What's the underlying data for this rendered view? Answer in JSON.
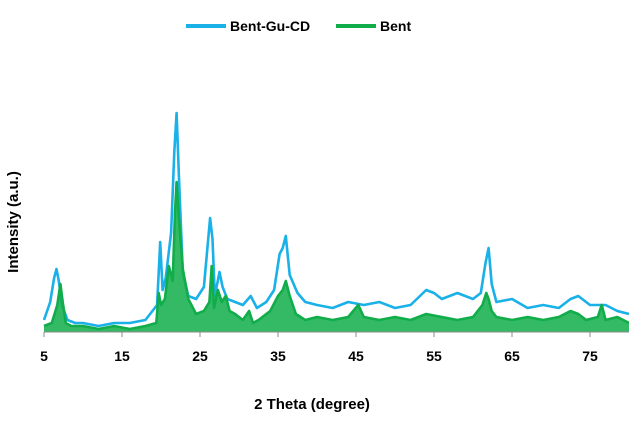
{
  "chart_data": {
    "type": "line",
    "title": "",
    "xlabel": "2 Theta (degree)",
    "ylabel": "Intensity (a.u.)",
    "xlim": [
      5,
      80
    ],
    "x_ticks": [
      5,
      15,
      25,
      35,
      45,
      55,
      65,
      75
    ],
    "x_tick_labels": [
      "5",
      "15",
      "25",
      "35",
      "45",
      "55",
      "65",
      "75"
    ],
    "y_ticks_shown": false,
    "grid": false,
    "legend": "top-center",
    "series": [
      {
        "name": "Bent-Gu-CD",
        "color": "#1ab0e8",
        "x": [
          5,
          5.8,
          6.3,
          6.6,
          6.9,
          7.3,
          8,
          9,
          10,
          12,
          14,
          16,
          18,
          19.5,
          19.9,
          20.2,
          20.6,
          21.3,
          21.7,
          22.0,
          22.3,
          22.8,
          23.5,
          24.5,
          25.5,
          26.3,
          26.6,
          26.9,
          27.5,
          27.9,
          28.5,
          29.5,
          30.5,
          31.5,
          32.3,
          33.5,
          34.5,
          35.2,
          35.6,
          36.0,
          36.5,
          37.5,
          38.5,
          40,
          42,
          44,
          46,
          48,
          50,
          52,
          54,
          55,
          56,
          58,
          60,
          61,
          61.6,
          62.0,
          62.4,
          63,
          65,
          67,
          69,
          71,
          72.5,
          73.5,
          75,
          77,
          78.5,
          80
        ],
        "y": [
          0.04,
          0.1,
          0.18,
          0.21,
          0.17,
          0.09,
          0.04,
          0.03,
          0.03,
          0.02,
          0.03,
          0.03,
          0.04,
          0.09,
          0.3,
          0.14,
          0.18,
          0.33,
          0.6,
          0.73,
          0.52,
          0.2,
          0.12,
          0.11,
          0.15,
          0.38,
          0.31,
          0.12,
          0.2,
          0.15,
          0.11,
          0.1,
          0.09,
          0.12,
          0.08,
          0.1,
          0.14,
          0.26,
          0.28,
          0.32,
          0.19,
          0.13,
          0.1,
          0.09,
          0.08,
          0.1,
          0.09,
          0.1,
          0.08,
          0.09,
          0.14,
          0.13,
          0.11,
          0.13,
          0.11,
          0.13,
          0.23,
          0.28,
          0.16,
          0.1,
          0.11,
          0.08,
          0.09,
          0.08,
          0.11,
          0.12,
          0.09,
          0.09,
          0.07,
          0.06
        ]
      },
      {
        "name": "Bent",
        "color": "#11ad4a",
        "x": [
          5,
          6,
          6.7,
          7.1,
          7.4,
          7.8,
          8.5,
          10,
          12,
          14,
          16,
          18,
          19.4,
          19.7,
          20.0,
          20.5,
          21.0,
          21.5,
          21.8,
          22.0,
          22.3,
          22.8,
          23.5,
          24.5,
          25.5,
          26.2,
          26.5,
          26.8,
          27.3,
          27.8,
          28.3,
          28.8,
          29.5,
          30.5,
          31.3,
          31.8,
          32.5,
          34,
          35,
          35.6,
          36.0,
          36.5,
          37.3,
          38.5,
          40,
          42,
          44,
          45.3,
          46,
          48,
          50,
          52,
          54,
          56,
          58,
          60,
          61.2,
          61.7,
          62.0,
          62.4,
          63,
          65,
          67,
          69,
          71,
          72.5,
          73.5,
          74.5,
          76,
          76.5,
          77,
          78.5,
          80
        ],
        "y": [
          0.02,
          0.03,
          0.09,
          0.16,
          0.1,
          0.03,
          0.02,
          0.02,
          0.01,
          0.02,
          0.01,
          0.02,
          0.03,
          0.13,
          0.09,
          0.11,
          0.22,
          0.17,
          0.4,
          0.5,
          0.38,
          0.21,
          0.11,
          0.06,
          0.07,
          0.1,
          0.22,
          0.08,
          0.14,
          0.1,
          0.12,
          0.07,
          0.06,
          0.04,
          0.07,
          0.03,
          0.04,
          0.07,
          0.12,
          0.14,
          0.17,
          0.12,
          0.06,
          0.04,
          0.05,
          0.04,
          0.05,
          0.09,
          0.05,
          0.04,
          0.05,
          0.04,
          0.06,
          0.05,
          0.04,
          0.05,
          0.09,
          0.13,
          0.11,
          0.07,
          0.05,
          0.04,
          0.05,
          0.04,
          0.05,
          0.07,
          0.06,
          0.04,
          0.05,
          0.09,
          0.04,
          0.05,
          0.03
        ]
      }
    ]
  }
}
